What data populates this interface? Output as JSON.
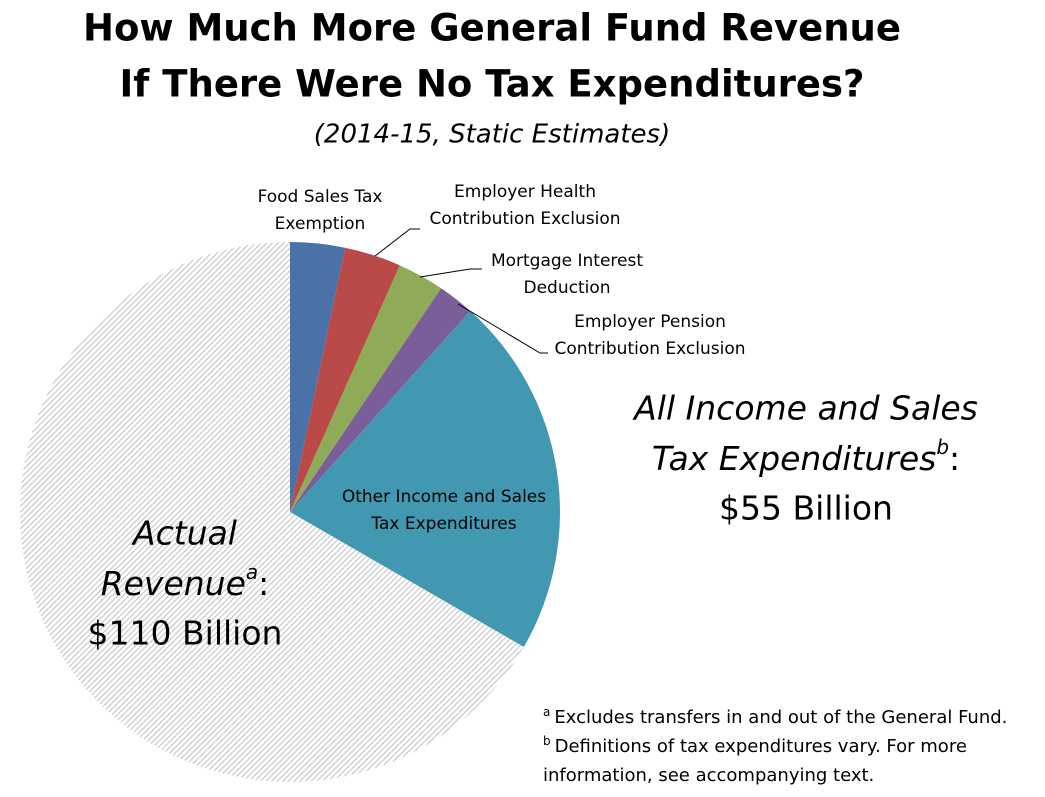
{
  "chart_data": {
    "type": "pie",
    "title": [
      "How Much More General Fund Revenue",
      "If There Were No Tax Expenditures?"
    ],
    "subtitle": "(2014-15, Static Estimates)",
    "categories": [
      [
        "Food Sales Tax",
        "Exemption"
      ],
      [
        "Employer Health",
        "Contribution Exclusion"
      ],
      [
        "Mortgage Interest",
        "Deduction"
      ],
      [
        "Employer Pension",
        "Contribution Exclusion"
      ],
      [
        "Other Income and Sales",
        "Tax Expenditures"
      ],
      [
        "Actual",
        "Revenue"
      ]
    ],
    "values": [
      5.4,
      5.6,
      4.6,
      3.6,
      35.8,
      110
    ],
    "value_labels": [
      null,
      null,
      null,
      null,
      null,
      "$110 Billion"
    ],
    "notes": [
      null,
      null,
      null,
      null,
      null,
      "a"
    ],
    "colors": [
      "#4a71a8",
      "#b94a48",
      "#8fab57",
      "#7a5e99",
      "#4298b0",
      "#bdbdbd"
    ],
    "patterns": [
      null,
      null,
      null,
      null,
      null,
      "diagonal"
    ],
    "label_suffix": ":",
    "group_label": {
      "lines": [
        "All Income and Sales",
        "Tax Expenditures"
      ],
      "note": "b",
      "value_label": "$55 Billion"
    },
    "footnotes": [
      {
        "mark": "a",
        "lines": [
          "Excludes transfers in and out of the General Fund."
        ]
      },
      {
        "mark": "b",
        "lines": [
          "Definitions of tax expenditures vary. For more",
          "information, see accompanying text."
        ]
      }
    ]
  }
}
